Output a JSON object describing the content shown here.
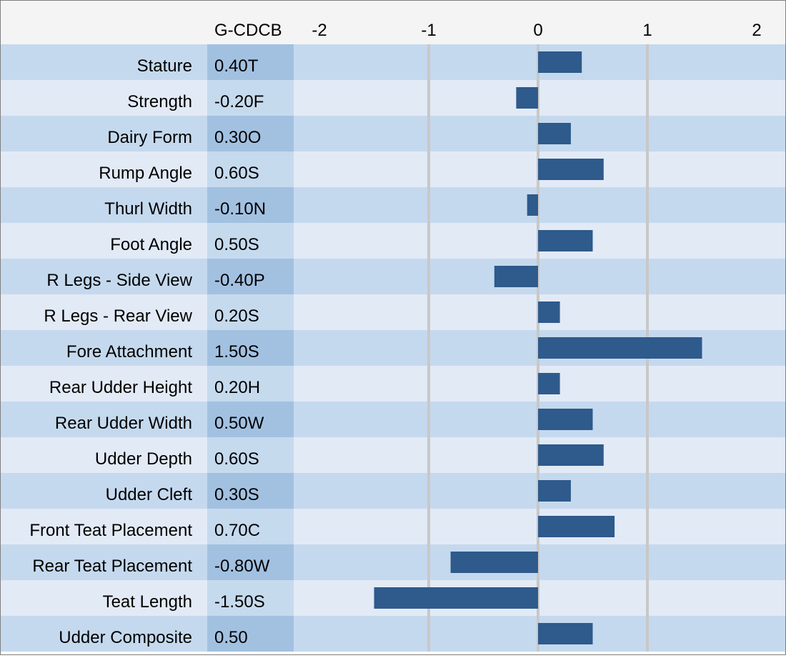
{
  "chart_data": {
    "type": "bar",
    "orientation": "horizontal",
    "column_header": "G-CDCB",
    "categories": [
      "Stature",
      "Strength",
      "Dairy Form",
      "Rump Angle",
      "Thurl Width",
      "Foot Angle",
      "R Legs - Side View",
      "R Legs - Rear View",
      "Fore Attachment",
      "Rear Udder Height",
      "Rear Udder Width",
      "Udder Depth",
      "Udder Cleft",
      "Front Teat Placement",
      "Rear Teat Placement",
      "Teat Length",
      "Udder Composite"
    ],
    "value_labels": [
      "0.40T",
      "-0.20F",
      "0.30O",
      "0.60S",
      "-0.10N",
      "0.50S",
      "-0.40P",
      "0.20S",
      "1.50S",
      "0.20H",
      "0.50W",
      "0.60S",
      "0.30S",
      "0.70C",
      "-0.80W",
      "-1.50S",
      "0.50"
    ],
    "values": [
      0.4,
      -0.2,
      0.3,
      0.6,
      -0.1,
      0.5,
      -0.4,
      0.2,
      1.5,
      0.2,
      0.5,
      0.6,
      0.3,
      0.7,
      -0.8,
      -1.5,
      0.5
    ],
    "xlim": [
      -2,
      2
    ],
    "xticks": [
      -2,
      -1,
      0,
      1,
      2
    ],
    "xtick_labels": [
      "-2",
      "-1",
      "0",
      "1",
      "2"
    ],
    "grid": true,
    "colors": {
      "bar": "#2e5a8c",
      "row_dark": "#c5d9ee",
      "row_light": "#e2eaf6",
      "value_col_dark": "#a2c1e1",
      "value_col_light": "#c6daee",
      "header_bg": "#f4f4f4",
      "gridline": "#c8c8c8"
    }
  }
}
